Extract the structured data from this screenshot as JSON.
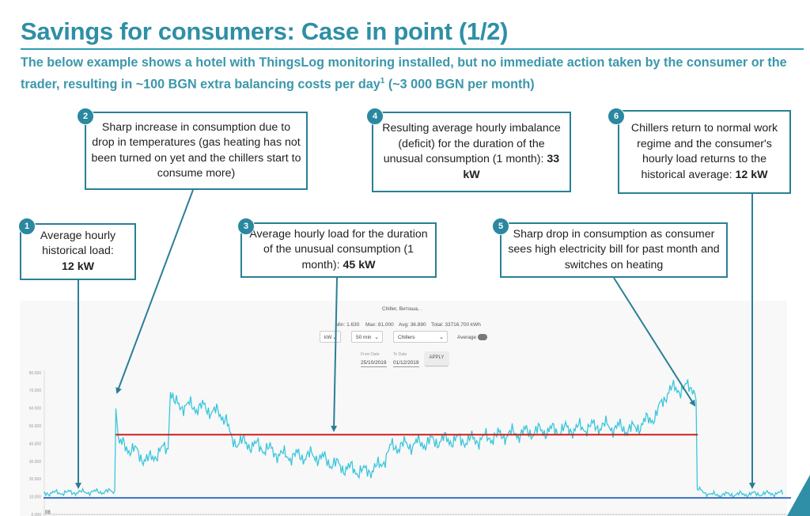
{
  "slide": {
    "title": "Savings for consumers: Case in point (1/2)",
    "subtitle": "The below example shows a hotel with ThingsLog monitoring installed, but no immediate action taken by the consumer or the trader, resulting in ~100 BGN extra balancing costs per day",
    "subtitle_sup": "1",
    "subtitle_tail": " (~3 000 BGN per month)"
  },
  "callouts": [
    {
      "num": "1",
      "text": "Average hourly historical load:",
      "bold": "12 kW"
    },
    {
      "num": "2",
      "text": "Sharp increase in consumption due to drop in temperatures (gas heating has not been turned on yet and the chillers start to consume more)",
      "bold": ""
    },
    {
      "num": "3",
      "text": "Average hourly load for the duration of the unusual consumption (1 month):",
      "bold": "45 kW"
    },
    {
      "num": "4",
      "text": "Resulting average hourly imbalance (deficit) for the duration of the unusual consumption (1 month):",
      "bold": "33 kW"
    },
    {
      "num": "5",
      "text": "Sharp drop in consumption as consumer sees high electricity bill for past month and switches on heating",
      "bold": ""
    },
    {
      "num": "6",
      "text": "Chillers return to normal work regime and the consumer's hourly load returns to the historical average:",
      "bold": "12 kW"
    }
  ],
  "dashboard": {
    "chart_title": "Chiller, Витоша, .",
    "stats": {
      "min": "Min: 1.630",
      "max": "Max: 81.000",
      "avg": "Avg: 36.890",
      "total": "Total: 33716.700 kWh"
    },
    "unit_select": "kW",
    "interval_select": "50 min",
    "device_select": "Chillers",
    "average_label": "Average",
    "from_label": "From Date",
    "from_value": "25/10/2019",
    "to_label": "To Date",
    "to_value": "01/12/2019",
    "apply_label": "APPLY",
    "x_first_label": "08"
  },
  "colors": {
    "accent": "#2e8fa6",
    "series": "#3cc6dc",
    "avg_line": "#d01c1c",
    "hist_line": "#3a6fc4"
  },
  "chart_data": {
    "type": "line",
    "title": "Chiller, Витоша, .",
    "ylabel": "kW",
    "ylim": [
      0,
      80
    ],
    "yticks": [
      "80.000",
      "70.000",
      "60.000",
      "50.000",
      "40.000",
      "30.000",
      "20.000",
      "10.000",
      "0.000"
    ],
    "x_unit": "percent of period 25/10/2019 – 01/12/2019",
    "series": [
      {
        "name": "Chillers",
        "points": [
          [
            0,
            12
          ],
          [
            9.6,
            13
          ],
          [
            9.7,
            67
          ],
          [
            10.1,
            40
          ],
          [
            12.2,
            36
          ],
          [
            14,
            30
          ],
          [
            15.4,
            35
          ],
          [
            16.8,
            38
          ],
          [
            17,
            72
          ],
          [
            17.6,
            62
          ],
          [
            21.8,
            60
          ],
          [
            24.5,
            55
          ],
          [
            25.2,
            42
          ],
          [
            29.3,
            38
          ],
          [
            32.4,
            33
          ],
          [
            36.7,
            33
          ],
          [
            39.9,
            27
          ],
          [
            43.1,
            24
          ],
          [
            45.2,
            27
          ],
          [
            46.8,
            38
          ],
          [
            50.5,
            40
          ],
          [
            53.7,
            42
          ],
          [
            58,
            42
          ],
          [
            62.2,
            45
          ],
          [
            66.5,
            47
          ],
          [
            70.7,
            48
          ],
          [
            75,
            50
          ],
          [
            79.3,
            48
          ],
          [
            82.4,
            56
          ],
          [
            84,
            70
          ],
          [
            87.6,
            72
          ],
          [
            87.8,
            60
          ],
          [
            87.9,
            14
          ],
          [
            89.9,
            11
          ],
          [
            100,
            12
          ]
        ]
      }
    ],
    "reference_lines": [
      {
        "name": "Historical average",
        "value": 12,
        "range": [
          0,
          100
        ]
      },
      {
        "name": "Unusual period average",
        "value": 45,
        "range": [
          9.7,
          88
        ]
      }
    ]
  }
}
